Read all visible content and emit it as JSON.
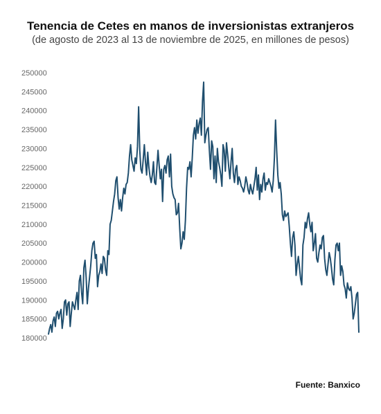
{
  "header": {
    "title": "Tenencia de Cetes en manos de inversionistas extranjeros",
    "subtitle": "(de agosto de 2023 al 13 de noviembre de 2025, en millones de pesos)"
  },
  "footer": {
    "source": "Fuente: Banxico"
  },
  "chart_data": {
    "type": "line",
    "title": "Tenencia de Cetes en manos de inversionistas extranjeros",
    "subtitle": "(de agosto de 2023 al 13 de noviembre de 2025, en millones de pesos)",
    "xlabel": "",
    "ylabel": "",
    "ylim": [
      180000,
      250000
    ],
    "yticks": [
      250000,
      245000,
      240000,
      235000,
      230000,
      225000,
      220000,
      215000,
      210000,
      205000,
      200000,
      195000,
      190000,
      185000,
      180000
    ],
    "grid": false,
    "x_axis_labels_shown": false,
    "line_color": "#1f4e6e",
    "series": [
      {
        "values": [
          181000,
          182500,
          183500,
          181500,
          184500,
          185500,
          183000,
          186500,
          187000,
          185000,
          186500,
          187500,
          182500,
          185000,
          189500,
          190000,
          186000,
          189000,
          189500,
          183000,
          186500,
          189500,
          188500,
          187500,
          190000,
          192000,
          187500,
          195000,
          196500,
          192000,
          189000,
          198500,
          200500,
          196000,
          189000,
          193000,
          196000,
          199000,
          203000,
          205000,
          205500,
          201000,
          202000,
          193500,
          196500,
          197500,
          199500,
          197000,
          201500,
          201000,
          198000,
          196500,
          203000,
          202000,
          210000,
          211000,
          213500,
          216000,
          218000,
          221500,
          222500,
          217000,
          214000,
          216500,
          213500,
          217000,
          219500,
          218000,
          220500,
          221000,
          223500,
          228000,
          231000,
          227000,
          225500,
          224000,
          227500,
          226000,
          230500,
          241000,
          229500,
          224500,
          223500,
          227000,
          231000,
          226500,
          223000,
          229000,
          225000,
          222500,
          221000,
          223000,
          226500,
          221000,
          220500,
          225000,
          229500,
          225500,
          222000,
          224500,
          216000,
          224500,
          225500,
          223500,
          227000,
          228000,
          222500,
          228500,
          220000,
          218000,
          217000,
          216500,
          212500,
          213000,
          215500,
          209000,
          203500,
          205000,
          208000,
          206000,
          211000,
          219500,
          225000,
          224500,
          226500,
          222500,
          227500,
          233500,
          235500,
          232500,
          237500,
          234000,
          236500,
          238000,
          233500,
          242500,
          247500,
          231500,
          233500,
          235000,
          235500,
          229500,
          224500,
          232000,
          230500,
          222000,
          228000,
          221000,
          230000,
          226500,
          225000,
          223000,
          220000,
          231000,
          229500,
          224000,
          231500,
          228500,
          225000,
          222000,
          226500,
          230000,
          223500,
          221000,
          224500,
          225500,
          220500,
          222500,
          221500,
          220000,
          219500,
          218500,
          220000,
          222500,
          221000,
          219000,
          218000,
          220500,
          219000,
          218000,
          220000,
          222000,
          225000,
          219000,
          223000,
          216500,
          220500,
          218500,
          222000,
          223500,
          219000,
          221000,
          220500,
          222000,
          221000,
          220000,
          218500,
          221500,
          227500,
          237500,
          229500,
          223000,
          219500,
          221000,
          218000,
          212500,
          211000,
          213500,
          212000,
          212500,
          213000,
          209500,
          205000,
          201500,
          206500,
          208000,
          204500,
          196500,
          199500,
          201500,
          198500,
          195500,
          194000,
          204500,
          206500,
          210500,
          209000,
          211500,
          213000,
          210000,
          208000,
          210500,
          203000,
          205000,
          207500,
          201000,
          200000,
          202500,
          204500,
          203500,
          206500,
          207000,
          201000,
          198000,
          196500,
          199500,
          202500,
          201000,
          198500,
          195500,
          194000,
          200500,
          204500,
          205000,
          203000,
          205000,
          196500,
          199000,
          197500,
          194000,
          193000,
          190500,
          194500,
          193000,
          192500,
          193500,
          190500,
          185000,
          186500,
          189000,
          191500,
          192000,
          181500
        ]
      }
    ]
  }
}
